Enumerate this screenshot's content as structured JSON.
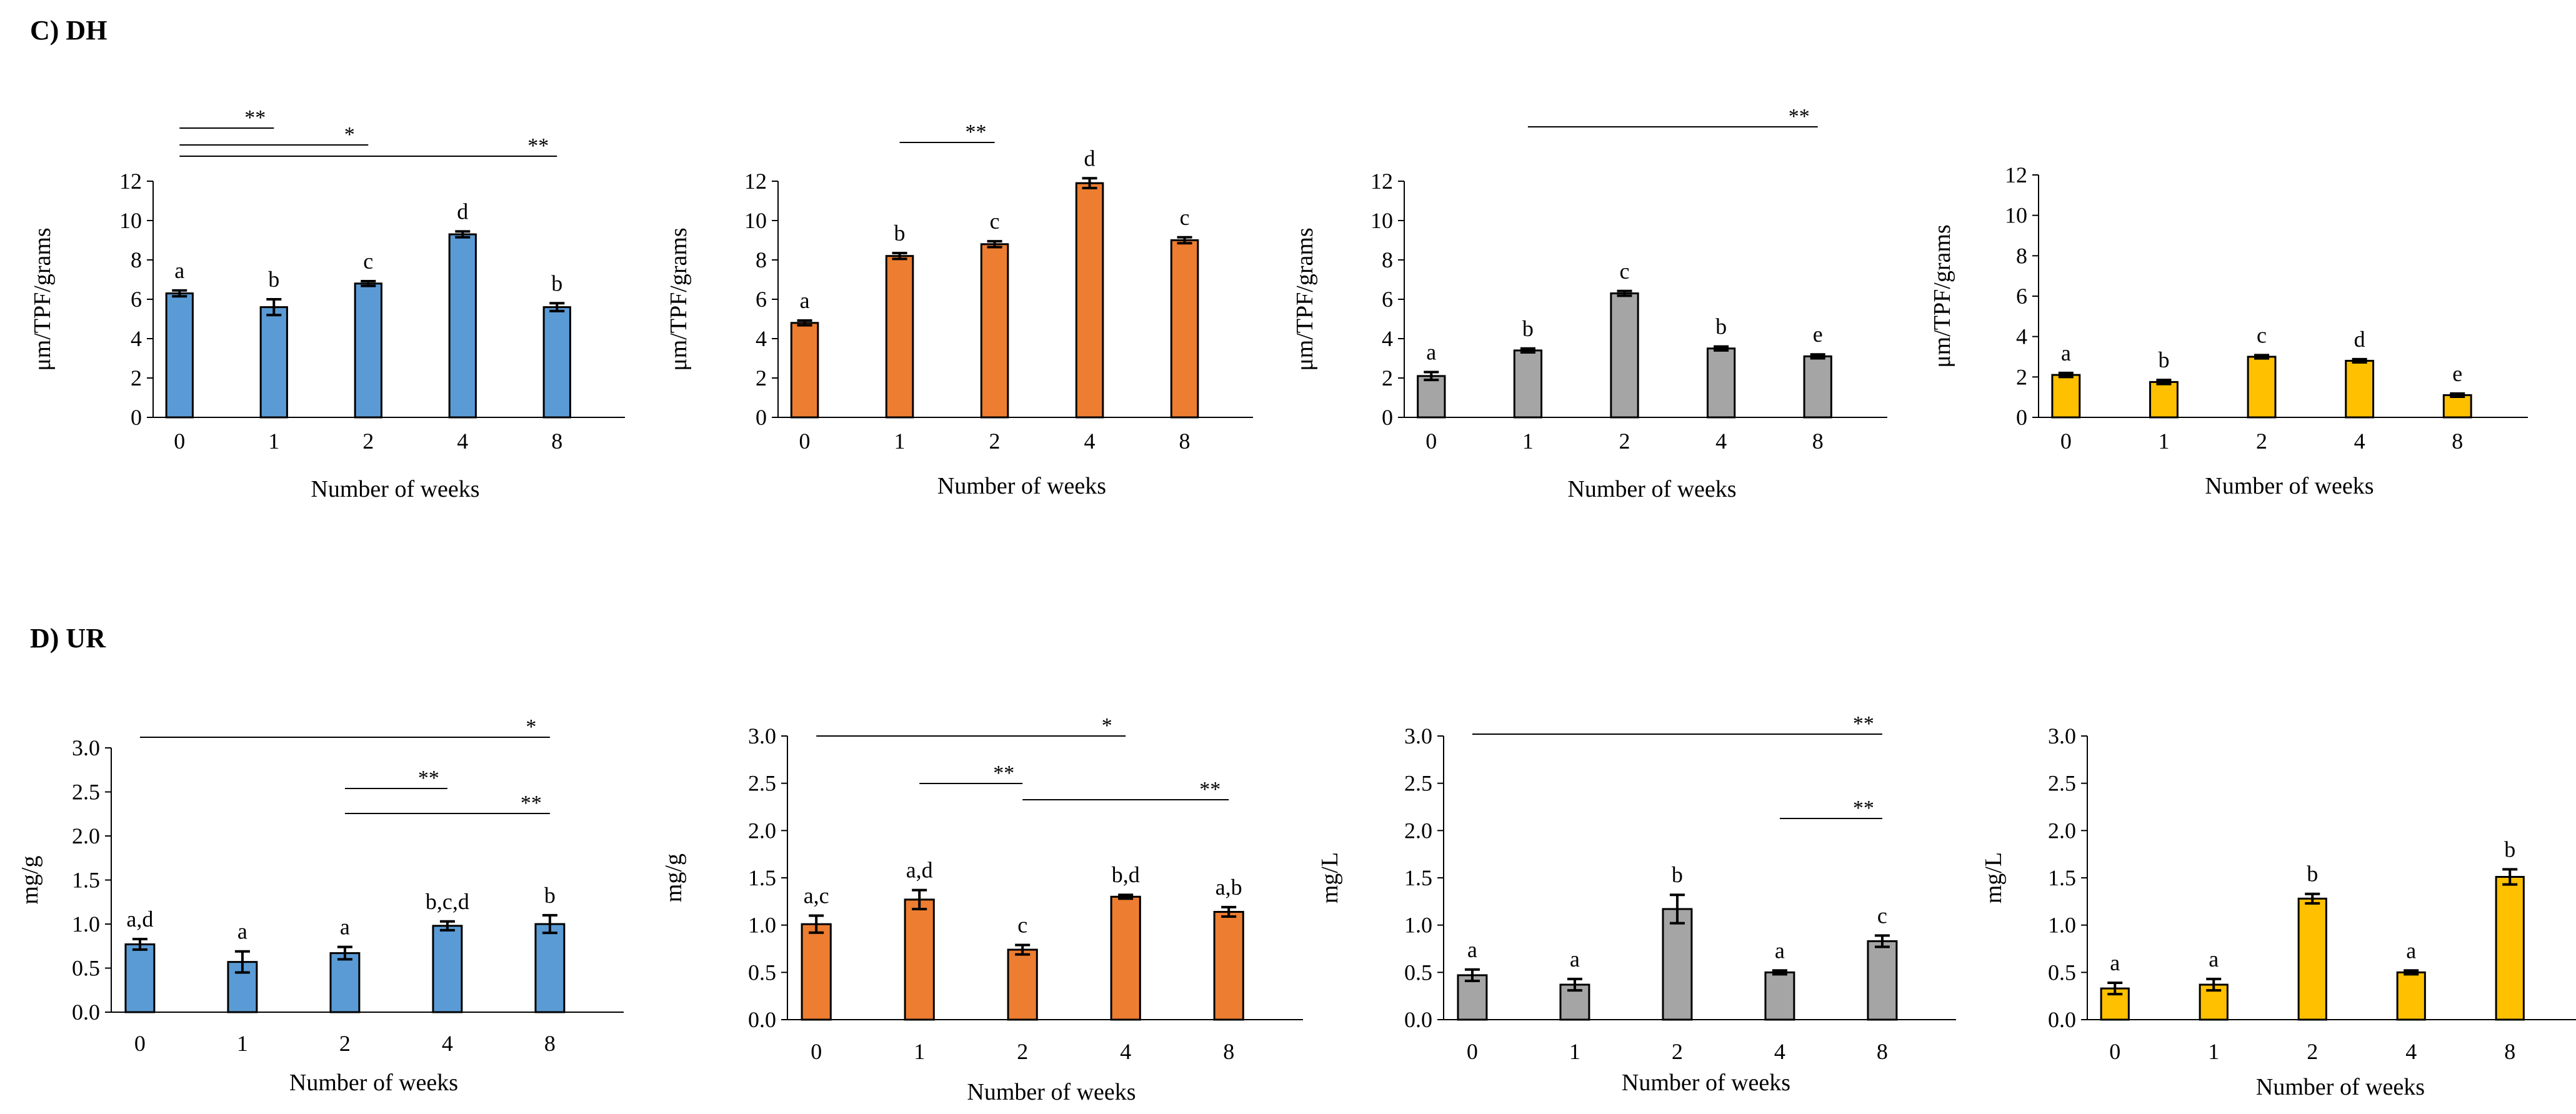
{
  "sections": [
    {
      "label": "C) DH"
    },
    {
      "label": "D) UR"
    }
  ],
  "colors": {
    "blue": "#5B9BD5",
    "orange": "#ED7D31",
    "gray": "#A5A5A5",
    "yellow": "#FFC000"
  },
  "chart_data": [
    {
      "type": "bar",
      "section": "C) DH",
      "color": "#5B9BD5",
      "categories": [
        "0",
        "1",
        "2",
        "4",
        "8"
      ],
      "values": [
        6.3,
        5.6,
        6.8,
        9.3,
        5.6
      ],
      "errors": [
        0.15,
        0.4,
        0.12,
        0.15,
        0.2
      ],
      "letters": [
        "a",
        "b",
        "c",
        "d",
        "b"
      ],
      "ylabel": "μm/TPF/grams",
      "xlabel": "Number of weeks",
      "ylim": [
        0,
        12
      ],
      "yticks": [
        "0",
        "2",
        "4",
        "6",
        "8",
        "10",
        "12"
      ],
      "significance": [
        {
          "from": 0,
          "to": 1,
          "label": "**"
        },
        {
          "from": 0,
          "to": 2,
          "label": "*"
        },
        {
          "from": 0,
          "to": 4,
          "label": "**"
        }
      ]
    },
    {
      "type": "bar",
      "section": "C) DH",
      "color": "#ED7D31",
      "categories": [
        "0",
        "1",
        "2",
        "4",
        "8"
      ],
      "values": [
        4.8,
        8.2,
        8.8,
        11.9,
        9.0
      ],
      "errors": [
        0.12,
        0.15,
        0.15,
        0.25,
        0.15
      ],
      "letters": [
        "a",
        "b",
        "c",
        "d",
        "c"
      ],
      "ylabel": "μm/TPF/grams",
      "xlabel": "Number of weeks",
      "ylim": [
        0,
        12
      ],
      "yticks": [
        "0",
        "2",
        "4",
        "6",
        "8",
        "10",
        "12"
      ],
      "significance": [
        {
          "from": 1,
          "to": 2,
          "label": "**"
        }
      ]
    },
    {
      "type": "bar",
      "section": "C) DH",
      "color": "#A5A5A5",
      "categories": [
        "0",
        "1",
        "2",
        "4",
        "8"
      ],
      "values": [
        2.1,
        3.4,
        6.3,
        3.5,
        3.1
      ],
      "errors": [
        0.2,
        0.1,
        0.12,
        0.1,
        0.1
      ],
      "letters": [
        "a",
        "b",
        "c",
        "b",
        "e"
      ],
      "ylabel": "μm/TPF/grams",
      "xlabel": "Number of weeks",
      "ylim": [
        0,
        12
      ],
      "yticks": [
        "0",
        "2",
        "4",
        "6",
        "8",
        "10",
        "12"
      ],
      "significance": [
        {
          "from": 1,
          "to": 4,
          "label": "**"
        }
      ]
    },
    {
      "type": "bar",
      "section": "C) DH",
      "color": "#FFC000",
      "categories": [
        "0",
        "1",
        "2",
        "4",
        "8"
      ],
      "values": [
        2.1,
        1.75,
        3.0,
        2.8,
        1.1
      ],
      "errors": [
        0.1,
        0.1,
        0.08,
        0.08,
        0.08
      ],
      "letters": [
        "a",
        "b",
        "c",
        "d",
        "e"
      ],
      "ylabel": "μm/TPF/grams",
      "xlabel": "Number of weeks",
      "ylim": [
        0,
        12
      ],
      "yticks": [
        "0",
        "2",
        "4",
        "6",
        "8",
        "10",
        "12"
      ],
      "significance": []
    },
    {
      "type": "bar",
      "section": "D) UR",
      "color": "#5B9BD5",
      "categories": [
        "0",
        "1",
        "2",
        "4",
        "8"
      ],
      "values": [
        0.77,
        0.57,
        0.67,
        0.98,
        1.0
      ],
      "errors": [
        0.06,
        0.12,
        0.07,
        0.05,
        0.1
      ],
      "letters": [
        "a,d",
        "a",
        "a",
        "b,c,d",
        "b"
      ],
      "ylabel": "mg/g",
      "xlabel": "Number of weeks",
      "ylim": [
        0,
        3
      ],
      "yticks": [
        "0.0",
        "0.5",
        "1.0",
        "1.5",
        "2.0",
        "2.5",
        "3.0"
      ],
      "significance": [
        {
          "from": 0,
          "to": 4,
          "label": "*"
        },
        {
          "from": 2,
          "to": 3,
          "label": "**"
        },
        {
          "from": 2,
          "to": 4,
          "label": "**"
        }
      ]
    },
    {
      "type": "bar",
      "section": "D) UR",
      "color": "#ED7D31",
      "categories": [
        "0",
        "1",
        "2",
        "4",
        "8"
      ],
      "values": [
        1.01,
        1.27,
        0.74,
        1.3,
        1.14
      ],
      "errors": [
        0.09,
        0.1,
        0.05,
        0.02,
        0.05
      ],
      "letters": [
        "a,c",
        "a,d",
        "c",
        "b,d",
        "a,b"
      ],
      "ylabel": "mg/g",
      "xlabel": "Number of weeks",
      "ylim": [
        0,
        3
      ],
      "yticks": [
        "0.0",
        "0.5",
        "1.0",
        "1.5",
        "2.0",
        "2.5",
        "3.0"
      ],
      "significance": [
        {
          "from": 0,
          "to": 3,
          "label": "*"
        },
        {
          "from": 1,
          "to": 2,
          "label": "**"
        },
        {
          "from": 2,
          "to": 4,
          "label": "**"
        }
      ]
    },
    {
      "type": "bar",
      "section": "D) UR",
      "color": "#A5A5A5",
      "categories": [
        "0",
        "1",
        "2",
        "4",
        "8"
      ],
      "values": [
        0.47,
        0.37,
        1.17,
        0.5,
        0.83
      ],
      "errors": [
        0.06,
        0.06,
        0.15,
        0.02,
        0.06
      ],
      "letters": [
        "a",
        "a",
        "b",
        "a",
        "c"
      ],
      "ylabel": "mg/L",
      "xlabel": "Number of weeks",
      "ylim": [
        0,
        3
      ],
      "yticks": [
        "0.0",
        "0.5",
        "1.0",
        "1.5",
        "2.0",
        "2.5",
        "3.0"
      ],
      "significance": [
        {
          "from": 0,
          "to": 4,
          "label": "**"
        },
        {
          "from": 3,
          "to": 4,
          "label": "**"
        }
      ]
    },
    {
      "type": "bar",
      "section": "D) UR",
      "color": "#FFC000",
      "categories": [
        "0",
        "1",
        "2",
        "4",
        "8"
      ],
      "values": [
        0.33,
        0.37,
        1.28,
        0.5,
        1.51
      ],
      "errors": [
        0.06,
        0.06,
        0.05,
        0.02,
        0.08
      ],
      "letters": [
        "a",
        "a",
        "b",
        "a",
        "b"
      ],
      "ylabel": "mg/L",
      "xlabel": "Number of weeks",
      "ylim": [
        0,
        3
      ],
      "yticks": [
        "0.0",
        "0.5",
        "1.0",
        "1.5",
        "2.0",
        "2.5",
        "3.0"
      ],
      "significance": []
    }
  ]
}
